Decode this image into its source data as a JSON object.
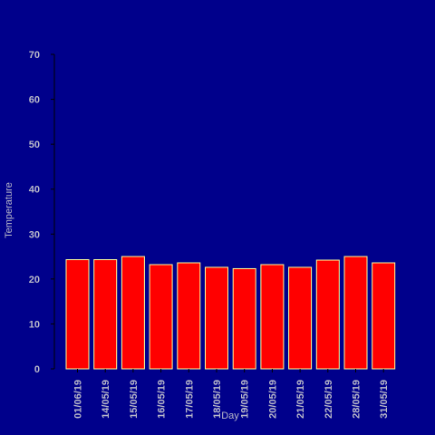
{
  "chart_data": {
    "type": "bar",
    "title": "",
    "xlabel": "Day",
    "ylabel": "Temperature",
    "ylim": [
      0,
      70
    ],
    "yticks": [
      0,
      10,
      20,
      30,
      40,
      50,
      60,
      70
    ],
    "grid": false,
    "categories": [
      "01/06/19",
      "14/05/19",
      "15/05/19",
      "16/05/19",
      "17/05/19",
      "18/05/19",
      "19/05/19",
      "20/05/19",
      "21/05/19",
      "22/05/19",
      "28/05/19",
      "31/05/19"
    ],
    "values": [
      24.3,
      24.3,
      25.0,
      23.2,
      23.6,
      22.6,
      22.3,
      23.2,
      22.6,
      24.2,
      25.0,
      23.6
    ]
  },
  "colors": {
    "background": "#00008b",
    "bar_fill": "#ff0000",
    "bar_edge": "#ffff99",
    "axis": "#000000",
    "text": "#b9b9c9"
  }
}
